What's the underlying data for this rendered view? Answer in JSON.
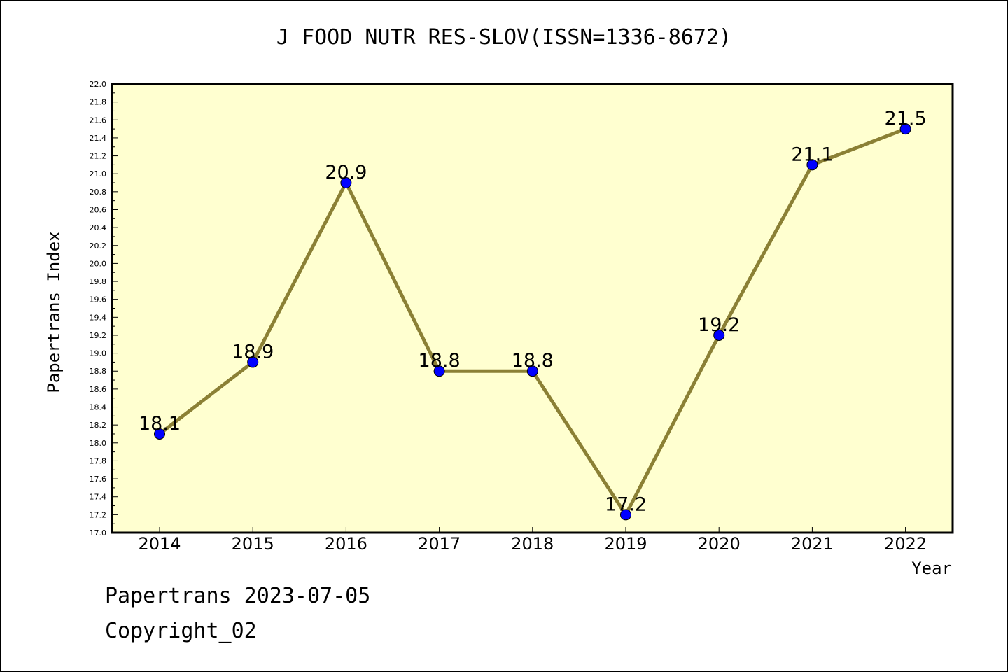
{
  "footer": {
    "line1": "Papertrans 2023-07-05",
    "line2": "Copyright_02"
  },
  "colors": {
    "plot_background": "#FFFFD0",
    "line": "#8B8035",
    "marker": "#0000FF",
    "axis": "#000000"
  },
  "chart_data": {
    "type": "line",
    "title": "J FOOD NUTR RES-SLOV(ISSN=1336-8672)",
    "xlabel": "Year",
    "ylabel": "Papertrans Index",
    "categories": [
      "2014",
      "2015",
      "2016",
      "2017",
      "2018",
      "2019",
      "2020",
      "2021",
      "2022"
    ],
    "series": [
      {
        "values": [
          18.1,
          18.9,
          20.9,
          18.8,
          18.8,
          17.2,
          19.2,
          21.1,
          21.5
        ],
        "labels": [
          "18.1",
          "18.9",
          "20.9",
          "18.8",
          "18.8",
          "17.2",
          "19.2",
          "21.1",
          "21.5"
        ]
      }
    ],
    "ylim": [
      17.0,
      22.0
    ],
    "yticks": [
      "17.0",
      "17.2",
      "17.4",
      "17.6",
      "17.8",
      "18.0",
      "18.2",
      "18.4",
      "18.6",
      "18.8",
      "19.0",
      "19.2",
      "19.4",
      "19.6",
      "19.8",
      "20.0",
      "20.2",
      "20.4",
      "20.6",
      "20.8",
      "21.0",
      "21.2",
      "21.4",
      "21.6",
      "21.8",
      "22.0"
    ],
    "grid": false,
    "legend": "none"
  }
}
